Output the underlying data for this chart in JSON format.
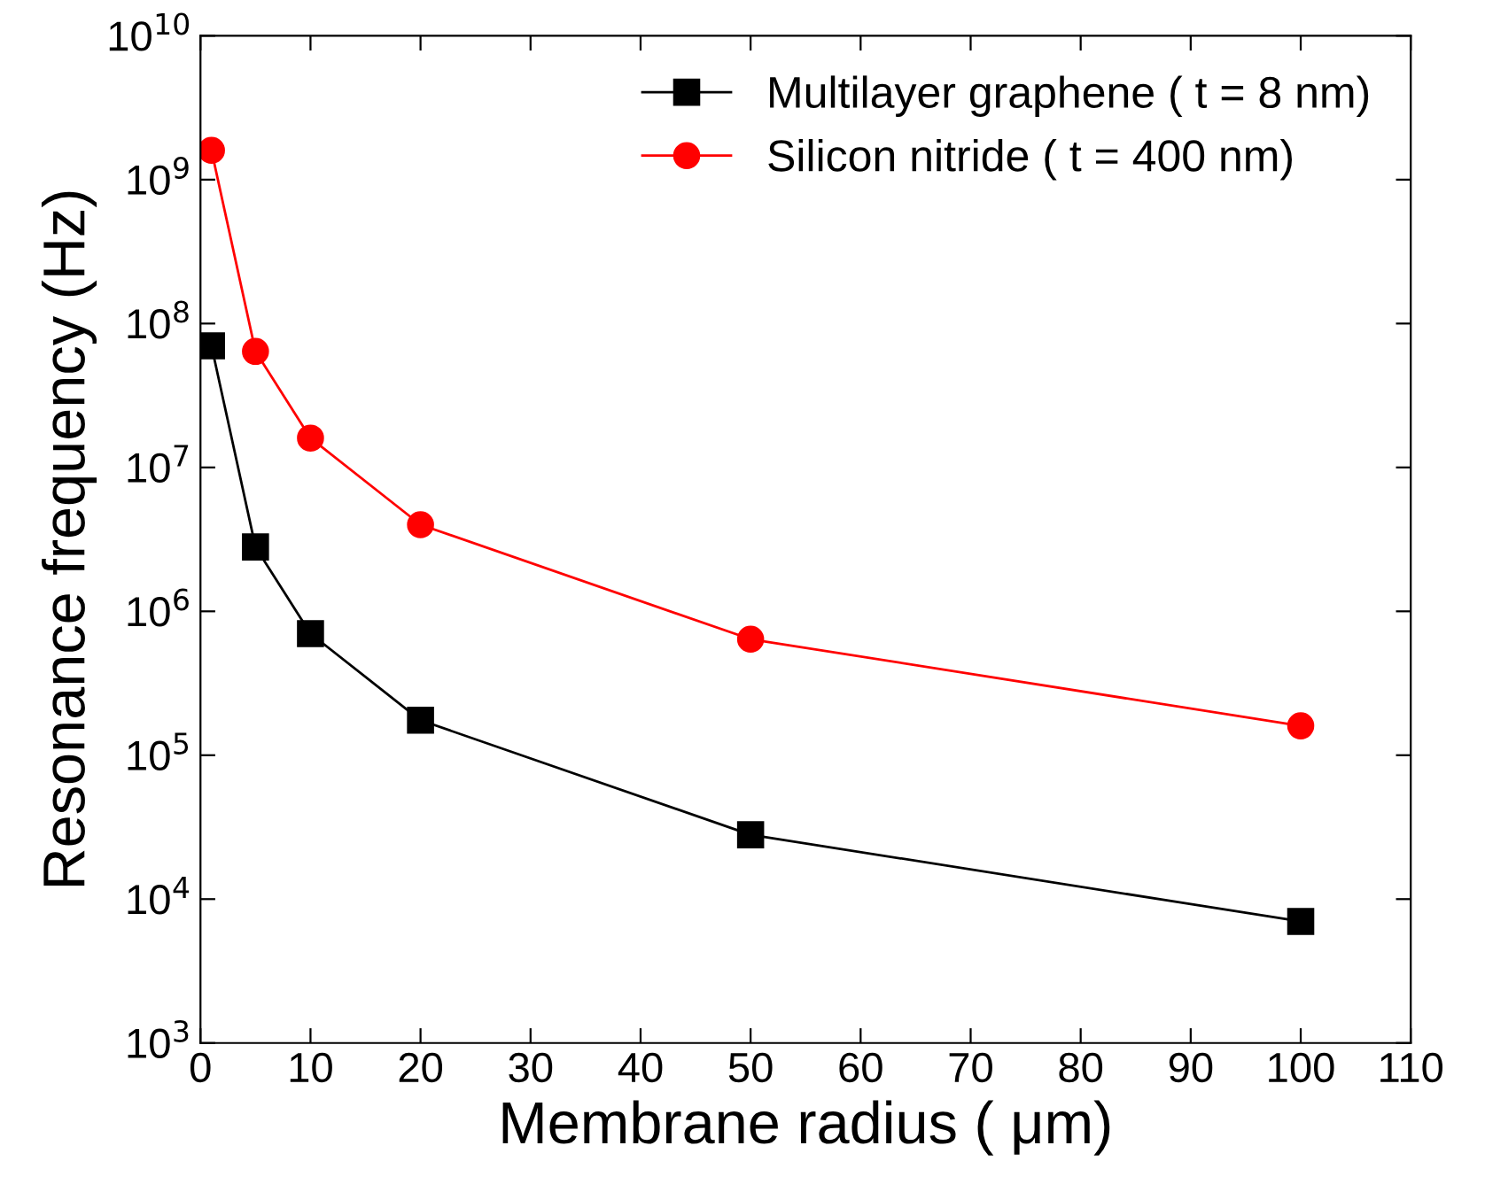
{
  "chart_data": {
    "type": "line",
    "xlabel": "Membrane radius ( μm)",
    "ylabel": "Resonance frequency (Hz)",
    "x": [
      1,
      5,
      10,
      20,
      50,
      100
    ],
    "series": [
      {
        "name": "Multilayer graphene ( t = 8 nm)",
        "color": "#000000",
        "marker": "square",
        "values": [
          70000000,
          2800000,
          700000,
          175000,
          28000,
          7000
        ]
      },
      {
        "name": "Silicon nitride ( t = 400 nm)",
        "color": "#ff0000",
        "marker": "circle",
        "values": [
          1600000000,
          64000000,
          16000000,
          4000000,
          640000,
          160000
        ]
      }
    ],
    "log": "y",
    "xlim": [
      0,
      110
    ],
    "xticks": [
      0,
      10,
      20,
      30,
      40,
      50,
      60,
      70,
      80,
      90,
      100,
      110
    ],
    "ylim": [
      1000,
      10000000000
    ],
    "yticks": [
      {
        "value": 1000,
        "label": "10$^{3}$"
      },
      {
        "value": 10000,
        "label": "10$^{4}$"
      },
      {
        "value": 100000,
        "label": "10$^{5}$"
      },
      {
        "value": 1000000,
        "label": "10$^{6}$"
      },
      {
        "value": 10000000,
        "label": "10$^{7}$"
      },
      {
        "value": 100000000,
        "label": "10$^{8}$"
      },
      {
        "value": 1000000000,
        "label": "10$^{9}$"
      },
      {
        "value": 10000000000,
        "label": "10$^{10}$"
      }
    ],
    "legend": "top right",
    "grid": false,
    "line_style": "solid"
  }
}
